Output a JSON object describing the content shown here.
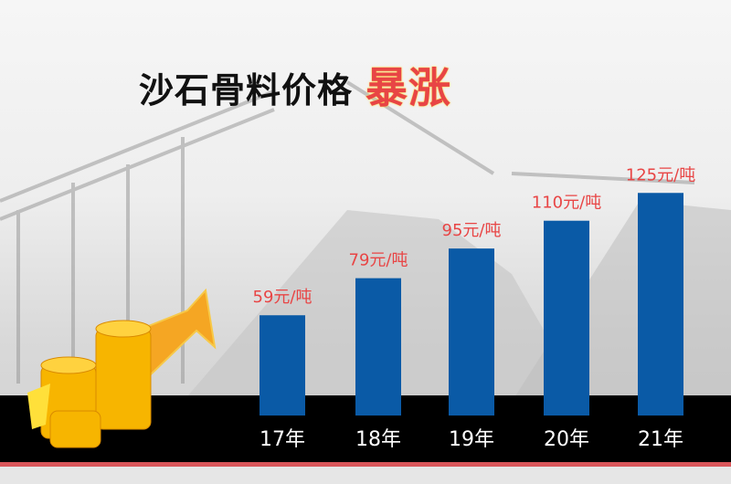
{
  "title": {
    "main": "沙石骨料价格",
    "highlight": "暴涨"
  },
  "colors": {
    "bar": "#0a5aa6",
    "label": "#e84545",
    "band": "#000000",
    "stripe": "#d9565a"
  },
  "chart_data": {
    "type": "bar",
    "categories": [
      "17年",
      "18年",
      "19年",
      "20年",
      "21年"
    ],
    "values": [
      59,
      79,
      95,
      110,
      125
    ],
    "data_labels": [
      "59元/吨",
      "79元/吨",
      "95元/吨",
      "110元/吨",
      "125元/吨"
    ],
    "unit": "元/吨",
    "grid": false
  },
  "decoration": {
    "icons": [
      "gold-coins-icon",
      "rising-arrow-icon"
    ]
  }
}
